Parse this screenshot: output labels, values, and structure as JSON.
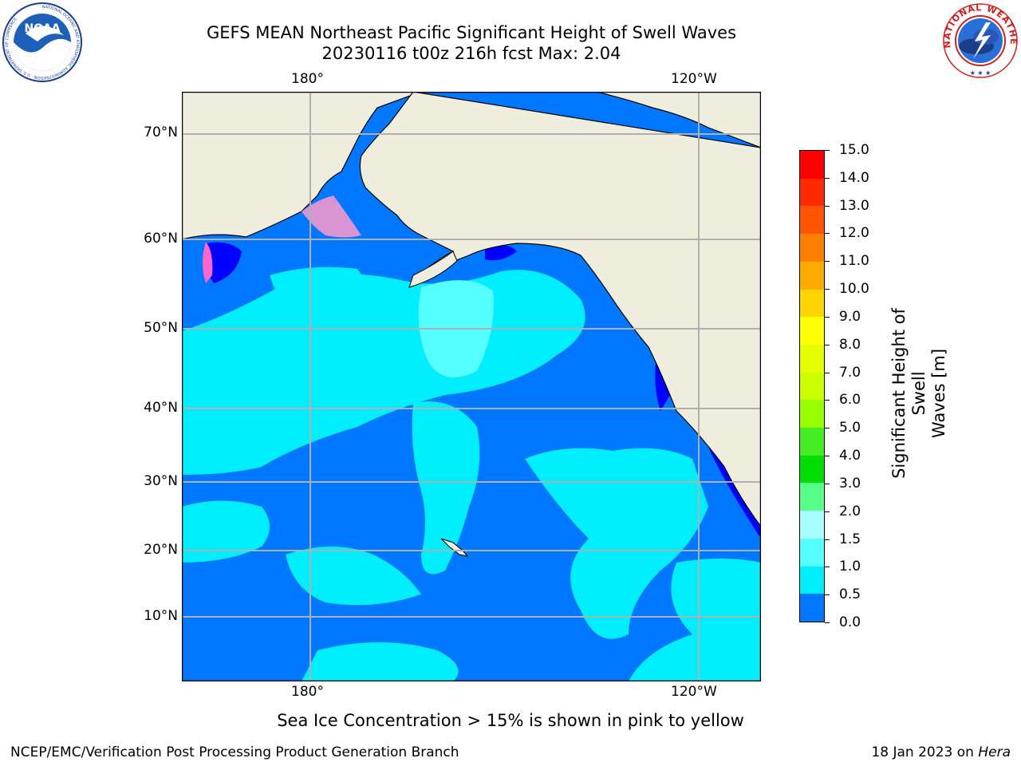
{
  "header": {
    "title_line1": "GEFS MEAN Northeast Pacific Significant Height of Swell Waves",
    "title_line2": "20230116 t00z 216h fcst   Max: 2.04"
  },
  "logos": {
    "noaa_text": "NOAA",
    "noaa_ring": "NATIONAL OCEANIC AND ATMOSPHERIC ADMINISTRATION · U.S. DEPARTMENT OF COMMERCE",
    "nws_ring": "NATIONAL WEATHER SERVICE"
  },
  "map": {
    "lon_labels": [
      "180°",
      "120°W"
    ],
    "lat_labels": [
      "70°N",
      "60°N",
      "50°N",
      "40°N",
      "30°N",
      "20°N",
      "10°N"
    ],
    "colors": {
      "land": "#eeedde",
      "ocean_deep": "#0077ff",
      "ocean_mid": "#00eeff",
      "ocean_light": "#55ffff",
      "grid": "#b0b0b0"
    }
  },
  "colorbar": {
    "label_line1": "Significant Height of Swell",
    "label_line2": "Waves [m]",
    "ticks": [
      "15.0",
      "14.0",
      "13.0",
      "12.0",
      "11.0",
      "10.0",
      "9.0",
      "8.0",
      "7.0",
      "6.0",
      "5.0",
      "4.0",
      "3.0",
      "2.0",
      "1.5",
      "1.0",
      "0.5",
      "0.0"
    ],
    "colors": [
      "#ff0000",
      "#ff2a00",
      "#ff5500",
      "#ff8000",
      "#ffaa00",
      "#ffd500",
      "#ffff00",
      "#e6ff00",
      "#ccff00",
      "#99ff00",
      "#44ee22",
      "#00dd00",
      "#55ff88",
      "#aaffff",
      "#55ffff",
      "#00eeff",
      "#0077ff",
      "#0000ff"
    ]
  },
  "note": "Sea Ice Concentration > 15% is shown in pink to yellow",
  "footer": {
    "left": "NCEP/EMC/Verification Post Processing Product Generation Branch",
    "right_prefix": "18 Jan 2023 on ",
    "right_italic": "Hera"
  }
}
